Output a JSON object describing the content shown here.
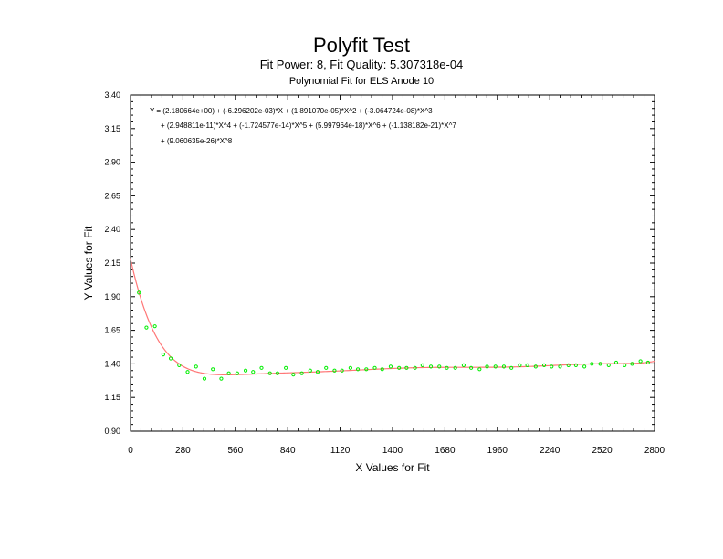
{
  "chart_data": {
    "type": "scatter",
    "title": "Polyfit Test",
    "subtitle": "Fit Power: 8, Fit Quality: 5.307318e-04",
    "subtitle2": "Polynomial Fit for ELS Anode 10",
    "xlabel": "X Values for Fit",
    "ylabel": "Y Values for Fit",
    "xlim": [
      0,
      2800
    ],
    "ylim": [
      0.9,
      3.4
    ],
    "x_ticks": [
      "0",
      "280",
      "560",
      "840",
      "1120",
      "1400",
      "1680",
      "1960",
      "2240",
      "2520",
      "2800"
    ],
    "y_ticks": [
      "0.90",
      "1.15",
      "1.40",
      "1.65",
      "1.90",
      "2.15",
      "2.40",
      "2.65",
      "2.90",
      "3.15",
      "3.40"
    ],
    "equation_lines": [
      "Y = (2.180664e+00) + (-6.296202e-03)*X + (1.891070e-05)*X^2 + (-3.064724e-08)*X^3",
      "+ (2.948811e-11)*X^4 + (-1.724577e-14)*X^5 + (5.997964e-18)*X^6 + (-1.138182e-21)*X^7",
      "+ (9.060635e-26)*X^8"
    ],
    "fit_coefficients": [
      2.180664,
      -0.006296202,
      1.89107e-05,
      -3.064724e-08,
      2.948811e-11,
      -1.724577e-14,
      5.997964e-18,
      -1.138182e-21,
      9.060635e-26
    ],
    "grid": false,
    "series": [
      {
        "kind": "points",
        "color": "#00ee00",
        "x": [
          45,
          85,
          130,
          175,
          215,
          260,
          305,
          350,
          395,
          440,
          485,
          525,
          570,
          615,
          655,
          700,
          745,
          785,
          830,
          870,
          915,
          960,
          1000,
          1045,
          1090,
          1130,
          1175,
          1215,
          1260,
          1305,
          1345,
          1390,
          1435,
          1475,
          1520,
          1560,
          1605,
          1650,
          1690,
          1735,
          1780,
          1820,
          1865,
          1905,
          1950,
          1995,
          2035,
          2080,
          2120,
          2165,
          2210,
          2250,
          2295,
          2340,
          2380,
          2425,
          2465,
          2510,
          2555,
          2595,
          2640,
          2680,
          2725,
          2765
        ],
        "y": [
          1.93,
          1.67,
          1.68,
          1.47,
          1.44,
          1.39,
          1.34,
          1.38,
          1.29,
          1.36,
          1.29,
          1.33,
          1.33,
          1.35,
          1.34,
          1.37,
          1.33,
          1.33,
          1.37,
          1.32,
          1.33,
          1.35,
          1.34,
          1.37,
          1.35,
          1.35,
          1.37,
          1.36,
          1.36,
          1.37,
          1.36,
          1.38,
          1.37,
          1.37,
          1.37,
          1.39,
          1.38,
          1.38,
          1.37,
          1.37,
          1.39,
          1.37,
          1.36,
          1.38,
          1.38,
          1.38,
          1.37,
          1.39,
          1.39,
          1.38,
          1.39,
          1.38,
          1.38,
          1.39,
          1.39,
          1.38,
          1.4,
          1.4,
          1.39,
          1.41,
          1.39,
          1.4,
          1.42,
          1.41
        ]
      },
      {
        "kind": "fit-line",
        "color": "#ff7777"
      }
    ]
  }
}
